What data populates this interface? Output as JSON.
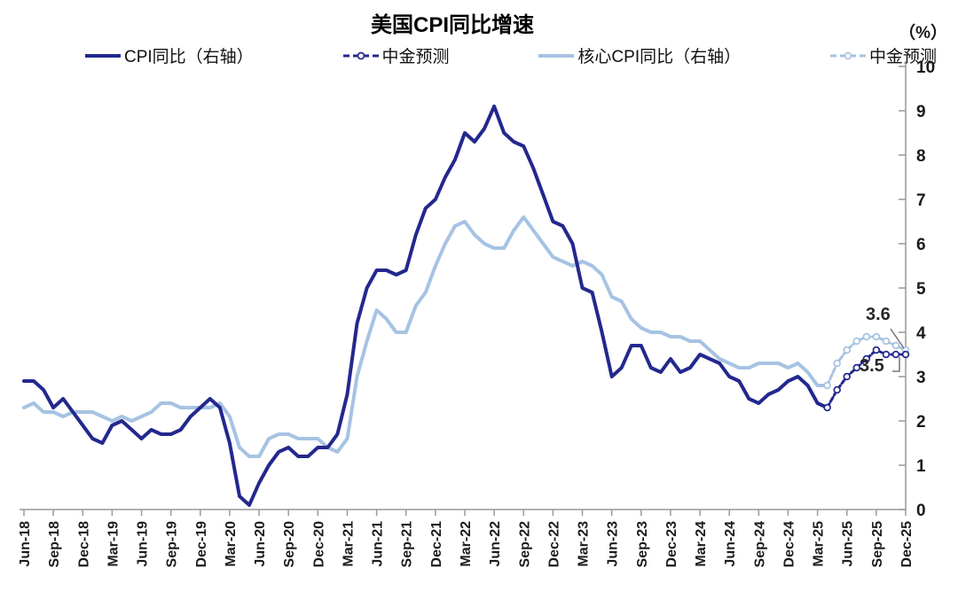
{
  "chart_data": {
    "type": "line",
    "title": "美国CPI同比增速",
    "unit_label": "（%）",
    "x_start_month": "Jun-18",
    "x_end_month": "Dec-25",
    "x_points_per_tick": 3,
    "x_tick_labels": [
      "Jun-18",
      "Sep-18",
      "Dec-18",
      "Mar-19",
      "Jun-19",
      "Sep-19",
      "Dec-19",
      "Mar-20",
      "Jun-20",
      "Sep-20",
      "Dec-20",
      "Mar-21",
      "Jun-21",
      "Sep-21",
      "Dec-21",
      "Mar-22",
      "Jun-22",
      "Sep-22",
      "Dec-22",
      "Mar-23",
      "Jun-23",
      "Sep-23",
      "Dec-23",
      "Mar-24",
      "Jun-24",
      "Sep-24",
      "Dec-24",
      "Mar-25",
      "Jun-25",
      "Sep-25",
      "Dec-25"
    ],
    "ylim": [
      0,
      10
    ],
    "y_tick_step": 1,
    "y_tick_labels": [
      "0",
      "1",
      "2",
      "3",
      "4",
      "5",
      "6",
      "7",
      "8",
      "9",
      "10"
    ],
    "y_axis_side": "right",
    "grid": false,
    "legend_position": "top",
    "colors": {
      "cpi_navy": "#23288e",
      "core_light_blue": "#a6c3e3",
      "axis_gray": "#999999",
      "leader_gray": "#777777"
    },
    "series": [
      {
        "name": "CPI同比（右轴）",
        "style": "solid",
        "color": "#23288e",
        "start_index": 0,
        "values": [
          2.9,
          2.9,
          2.7,
          2.3,
          2.5,
          2.2,
          1.9,
          1.6,
          1.5,
          1.9,
          2.0,
          1.8,
          1.6,
          1.8,
          1.7,
          1.7,
          1.8,
          2.1,
          2.3,
          2.5,
          2.3,
          1.5,
          0.3,
          0.1,
          0.6,
          1.0,
          1.3,
          1.4,
          1.2,
          1.2,
          1.4,
          1.4,
          1.7,
          2.6,
          4.2,
          5.0,
          5.4,
          5.4,
          5.3,
          5.4,
          6.2,
          6.8,
          7.0,
          7.5,
          7.9,
          8.5,
          8.3,
          8.6,
          9.1,
          8.5,
          8.3,
          8.2,
          7.7,
          7.1,
          6.5,
          6.4,
          6.0,
          5.0,
          4.9,
          4.0,
          3.0,
          3.2,
          3.7,
          3.7,
          3.2,
          3.1,
          3.4,
          3.1,
          3.2,
          3.5,
          3.4,
          3.3,
          3.0,
          2.9,
          2.5,
          2.4,
          2.6,
          2.7,
          2.9,
          3.0,
          2.8,
          2.4,
          2.3
        ]
      },
      {
        "name": "中金预测",
        "style": "dashed_marker",
        "color": "#23288e",
        "start_index": 82,
        "values": [
          2.3,
          2.7,
          3.0,
          3.2,
          3.4,
          3.6,
          3.5,
          3.5,
          3.5
        ]
      },
      {
        "name": "核心CPI同比（右轴）",
        "style": "solid",
        "color": "#a6c3e3",
        "start_index": 0,
        "values": [
          2.3,
          2.4,
          2.2,
          2.2,
          2.1,
          2.2,
          2.2,
          2.2,
          2.1,
          2.0,
          2.1,
          2.0,
          2.1,
          2.2,
          2.4,
          2.4,
          2.3,
          2.3,
          2.3,
          2.3,
          2.4,
          2.1,
          1.4,
          1.2,
          1.2,
          1.6,
          1.7,
          1.7,
          1.6,
          1.6,
          1.6,
          1.4,
          1.3,
          1.6,
          3.0,
          3.8,
          4.5,
          4.3,
          4.0,
          4.0,
          4.6,
          4.9,
          5.5,
          6.0,
          6.4,
          6.5,
          6.2,
          6.0,
          5.9,
          5.9,
          6.3,
          6.6,
          6.3,
          6.0,
          5.7,
          5.6,
          5.5,
          5.6,
          5.5,
          5.3,
          4.8,
          4.7,
          4.3,
          4.1,
          4.0,
          4.0,
          3.9,
          3.9,
          3.8,
          3.8,
          3.6,
          3.4,
          3.3,
          3.2,
          3.2,
          3.3,
          3.3,
          3.3,
          3.2,
          3.3,
          3.1,
          2.8,
          2.8
        ]
      },
      {
        "name": "中金预测",
        "style": "dashed_marker",
        "color": "#a6c3e3",
        "start_index": 82,
        "values": [
          2.8,
          3.3,
          3.6,
          3.8,
          3.9,
          3.9,
          3.8,
          3.7,
          3.6
        ]
      }
    ],
    "annotations": [
      {
        "text": "3.6",
        "target": "核心CPI同比 中金预测 Dec-25"
      },
      {
        "text": "3.5",
        "target": "CPI同比 中金预测 Dec-25"
      }
    ]
  }
}
